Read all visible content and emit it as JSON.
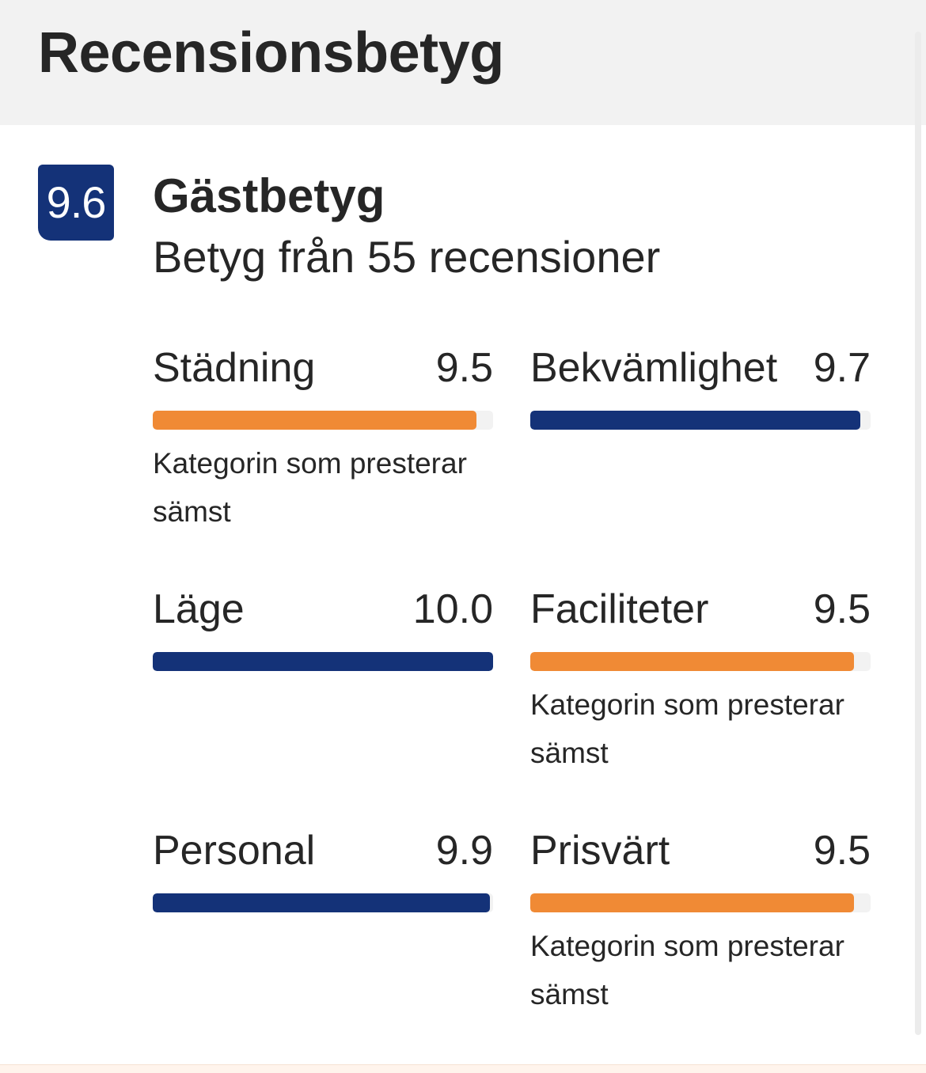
{
  "header": {
    "title": "Recensionsbetyg"
  },
  "summary": {
    "score": "9.6",
    "title": "Gästbetyg",
    "subtitle": "Betyg från 55 recensioner"
  },
  "categories": [
    {
      "name": "Städning",
      "score": "9.5",
      "value": 9.5,
      "note": "Kategorin som presterar sämst"
    },
    {
      "name": "Bekvämlighet",
      "score": "9.7",
      "value": 9.7,
      "note": ""
    },
    {
      "name": "Läge",
      "score": "10.0",
      "value": 10.0,
      "note": ""
    },
    {
      "name": "Faciliteter",
      "score": "9.5",
      "value": 9.5,
      "note": "Kategorin som presterar sämst"
    },
    {
      "name": "Personal",
      "score": "9.9",
      "value": 9.9,
      "note": ""
    },
    {
      "name": "Prisvärt",
      "score": "9.5",
      "value": 9.5,
      "note": "Kategorin som presterar sämst"
    }
  ],
  "colors": {
    "badge": "#143278",
    "bar_high": "#143278",
    "bar_low": "#f08a35",
    "bar_track": "#f2f2f2",
    "header_bg": "#f2f2f2"
  }
}
